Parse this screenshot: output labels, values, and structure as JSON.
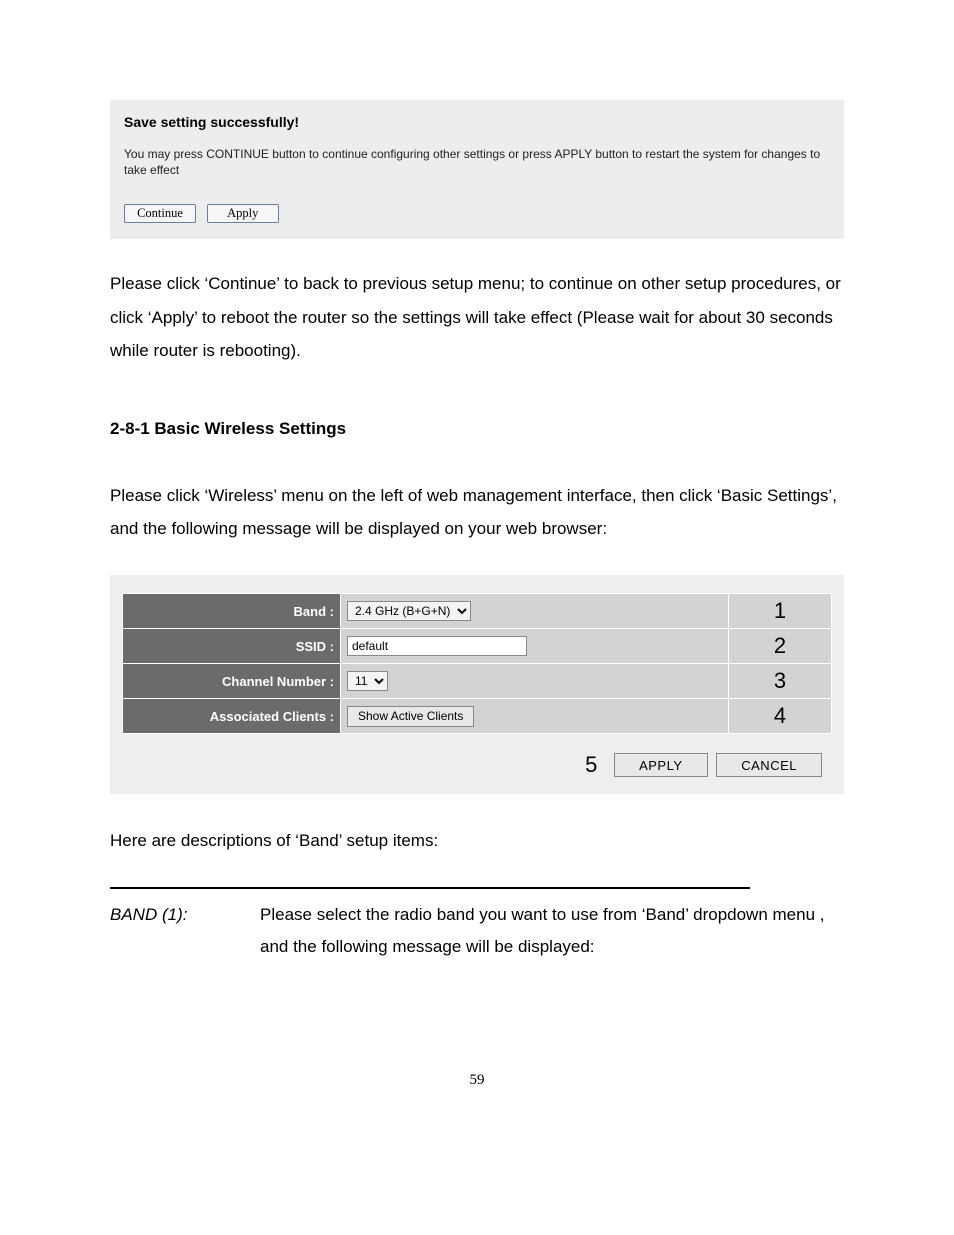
{
  "save_box": {
    "heading": "Save setting successfully!",
    "text": "You may press CONTINUE button to continue configuring other settings or press APPLY button to restart the system for changes to take effect",
    "continue_label": "Continue",
    "apply_label": "Apply"
  },
  "paragraph1": "Please click ‘Continue’ to back to previous setup menu; to continue on other setup procedures, or click ‘Apply’ to reboot the router so the settings will take effect (Please wait for about 30 seconds while router is rebooting).",
  "section_heading": "2-8-1 Basic Wireless Settings",
  "paragraph2": "Please click ‘Wireless’ menu on the left of web management interface, then click ‘Basic Settings’, and the following message will be displayed on your web browser:",
  "wifi": {
    "rows": {
      "band": {
        "label": "Band :",
        "value": "2.4 GHz (B+G+N)",
        "num": "1"
      },
      "ssid": {
        "label": "SSID :",
        "value": "default",
        "num": "2"
      },
      "channel": {
        "label": "Channel Number :",
        "value": "11",
        "num": "3"
      },
      "clients": {
        "label": "Associated Clients :",
        "button": "Show Active Clients",
        "num": "4"
      }
    },
    "footer": {
      "num": "5",
      "apply": "APPLY",
      "cancel": "CANCEL"
    }
  },
  "paragraph3": "Here are descriptions of ‘Band’ setup items:",
  "def": {
    "term": "BAND (1):",
    "body": "Please select the radio band you want to use from ‘Band’ dropdown menu , and the following message will be displayed:"
  },
  "page_number": "59"
}
